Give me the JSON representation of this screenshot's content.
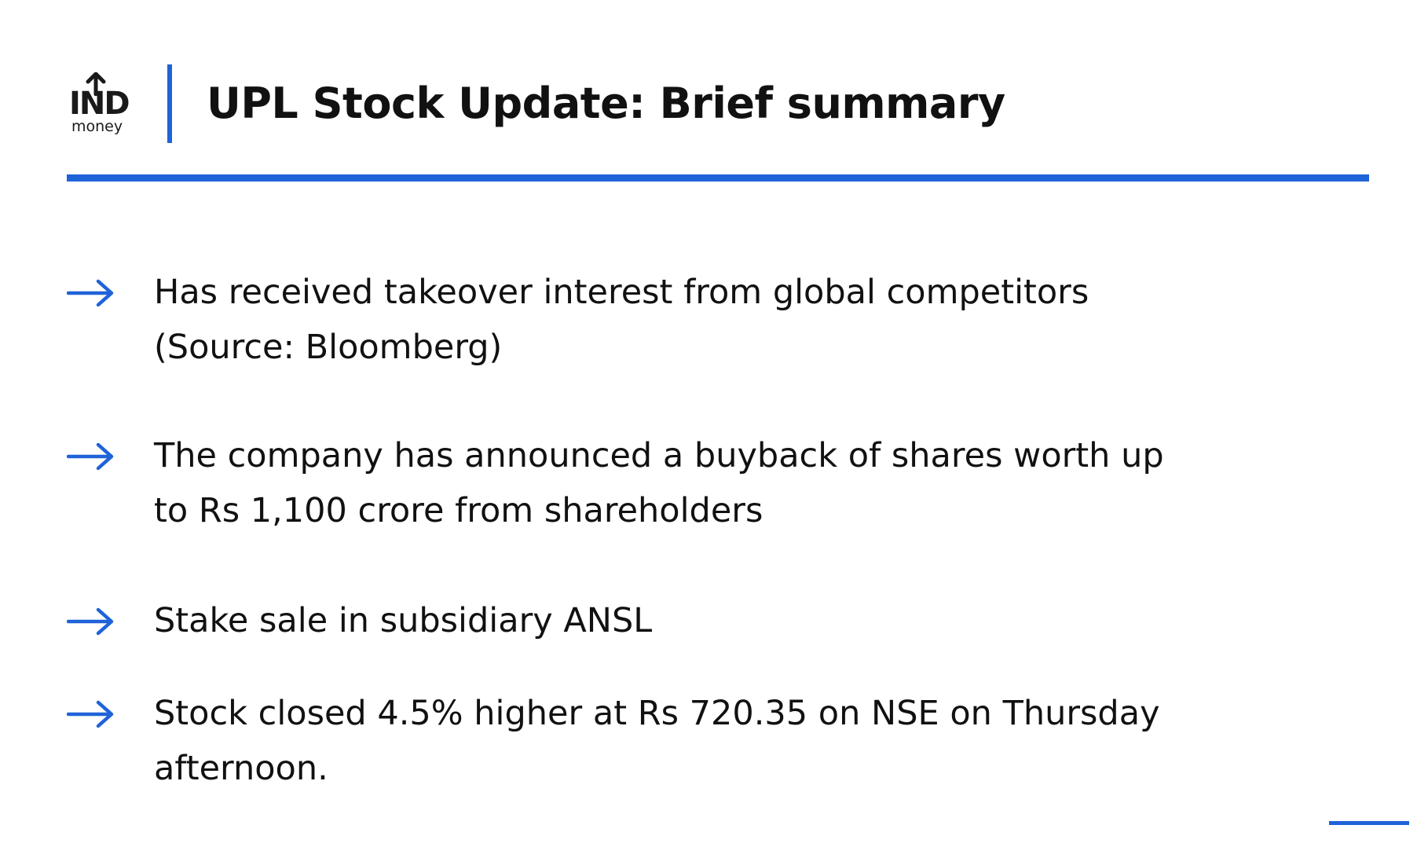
{
  "logo": {
    "brand": "IND",
    "sub": "money"
  },
  "header": {
    "title": "UPL Stock Update: Brief summary"
  },
  "bullets": [
    {
      "lines": [
        "Has received takeover interest from global competitors",
        "(Source: Bloomberg)"
      ],
      "icon": "arrow-right-icon"
    },
    {
      "lines": [
        "The company has announced a buyback of shares worth up",
        "to Rs 1,100 crore from shareholders"
      ],
      "icon": "arrow-right-icon"
    },
    {
      "lines": [
        "Stake sale in subsidiary ANSL"
      ],
      "icon": "arrow-right-icon"
    },
    {
      "lines": [
        "Stock closed 4.5% higher at Rs 720.35 on NSE on Thursday",
        "afternoon."
      ],
      "icon": "arrow-right-icon"
    }
  ],
  "colors": {
    "accent": "#1f63d8",
    "text": "#111111",
    "background": "#ffffff"
  }
}
